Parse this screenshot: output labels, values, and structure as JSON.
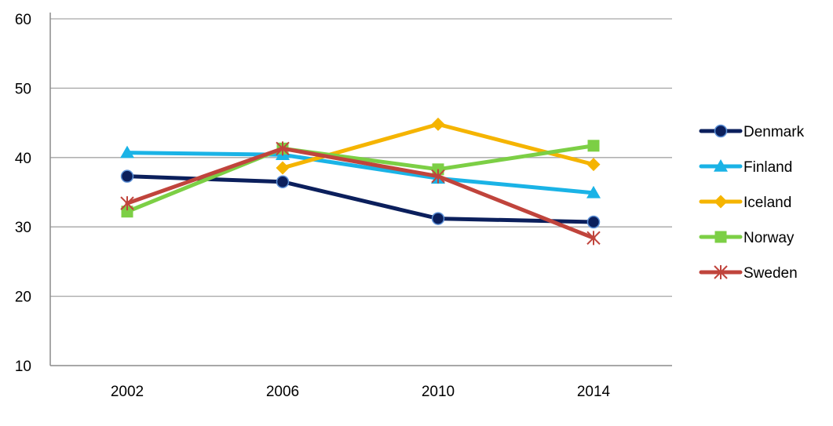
{
  "chart_data": {
    "type": "line",
    "title": "",
    "xlabel": "",
    "ylabel": "",
    "categories": [
      "2002",
      "2006",
      "2010",
      "2014"
    ],
    "ylim": [
      10,
      60
    ],
    "yticks": [
      "10",
      "20",
      "30",
      "40",
      "50",
      "60"
    ],
    "grid": "horizontal",
    "legend_position": "right",
    "series": [
      {
        "name": "Denmark",
        "values": [
          37.3,
          36.5,
          31.2,
          30.7
        ],
        "color": "#0b1f5c",
        "marker": "circle"
      },
      {
        "name": "Finland",
        "values": [
          40.7,
          40.4,
          37.0,
          34.9
        ],
        "color": "#1ab3e6",
        "marker": "triangle"
      },
      {
        "name": "Iceland",
        "values": [
          null,
          38.5,
          44.8,
          39.0
        ],
        "color": "#f5b400",
        "marker": "diamond"
      },
      {
        "name": "Norway",
        "values": [
          32.2,
          41.3,
          38.3,
          41.7
        ],
        "color": "#7ccf45",
        "marker": "square"
      },
      {
        "name": "Sweden",
        "values": [
          33.4,
          41.3,
          37.3,
          28.4
        ],
        "color": "#c0443c",
        "marker": "star"
      }
    ]
  }
}
